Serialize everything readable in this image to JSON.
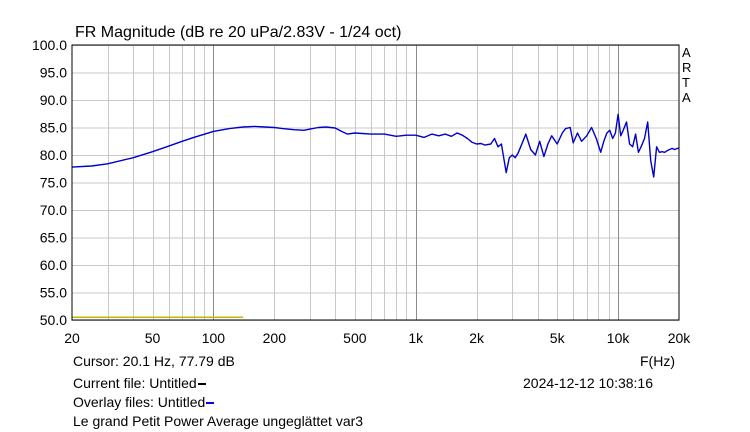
{
  "chart_data": {
    "type": "line",
    "title": "FR Magnitude (dB re 20 uPa/2.83V - 1/24 oct)",
    "xlabel": "F(Hz)",
    "ylabel": "",
    "xscale": "log",
    "xlim": [
      20,
      20000
    ],
    "ylim": [
      50,
      100
    ],
    "yticks": [
      100,
      95,
      90,
      85,
      80,
      75,
      70,
      65,
      60,
      55,
      50
    ],
    "ytick_labels": [
      "100.0",
      "95.0",
      "90.0",
      "85.0",
      "80.0",
      "75.0",
      "70.0",
      "65.0",
      "60.0",
      "55.0",
      "50.0"
    ],
    "xticks": [
      20,
      50,
      100,
      200,
      500,
      1000,
      2000,
      5000,
      10000,
      20000
    ],
    "xtick_labels": [
      "20",
      "50",
      "100",
      "200",
      "500",
      "1k",
      "2k",
      "5k",
      "10k",
      "20k"
    ],
    "grid": true,
    "series": [
      {
        "name": "Untitled",
        "color": "#0000cc",
        "x": [
          20,
          25,
          30,
          40,
          50,
          60,
          70,
          80,
          100,
          120,
          140,
          160,
          180,
          200,
          220,
          250,
          280,
          300,
          330,
          360,
          400,
          430,
          460,
          500,
          600,
          700,
          800,
          900,
          1000,
          1100,
          1200,
          1300,
          1400,
          1500,
          1600,
          1700,
          1800,
          1900,
          2000,
          2100,
          2200,
          2350,
          2450,
          2550,
          2650,
          2800,
          2900,
          3000,
          3100,
          3200,
          3300,
          3500,
          3700,
          3900,
          4100,
          4300,
          4500,
          4700,
          5000,
          5300,
          5500,
          5800,
          6000,
          6300,
          6600,
          7000,
          7400,
          7800,
          8200,
          8500,
          8800,
          9100,
          9400,
          9700,
          10000,
          10300,
          10600,
          11000,
          11400,
          11800,
          12200,
          12600,
          13000,
          13500,
          14000,
          14500,
          15000,
          15500,
          16000,
          16500,
          17000,
          17500,
          18000,
          18500,
          19000,
          20000
        ],
        "y": [
          77.8,
          78.0,
          78.4,
          79.5,
          80.6,
          81.6,
          82.5,
          83.2,
          84.3,
          84.8,
          85.1,
          85.2,
          85.1,
          85.0,
          84.8,
          84.6,
          84.5,
          84.7,
          85.0,
          85.1,
          84.9,
          84.3,
          83.8,
          84.0,
          83.8,
          83.8,
          83.4,
          83.6,
          83.6,
          83.2,
          83.8,
          83.5,
          83.8,
          83.4,
          84.0,
          83.6,
          83.0,
          82.3,
          82.0,
          82.1,
          81.8,
          82.0,
          83.0,
          81.5,
          82.0,
          76.8,
          79.5,
          80.0,
          79.5,
          80.3,
          81.5,
          83.8,
          81.0,
          80.0,
          82.5,
          79.7,
          82.0,
          83.5,
          82.0,
          84.0,
          84.8,
          85.0,
          82.2,
          84.0,
          82.5,
          83.5,
          85.0,
          83.0,
          80.5,
          82.5,
          84.0,
          84.5,
          83.0,
          84.0,
          87.4,
          83.5,
          84.5,
          86.0,
          82.0,
          81.5,
          83.8,
          80.5,
          81.5,
          83.0,
          86.0,
          79.0,
          76.0,
          81.5,
          80.5,
          80.6,
          80.5,
          80.8,
          81.0,
          81.2,
          81.0,
          81.3
        ],
        "cursor": {
          "x": 20.1,
          "y": 77.79
        }
      },
      {
        "name": "Overlay",
        "color": "#c8b400",
        "x": [
          20,
          140
        ],
        "y": [
          50.5,
          50.5
        ]
      }
    ]
  },
  "side_label": [
    "A",
    "R",
    "T",
    "A"
  ],
  "cursor_text": "Cursor: 20.1 Hz, 77.79 dB",
  "xunit": "F(Hz)",
  "current_file": "Current file: Untitled",
  "current_file_color": "#000000",
  "timestamp": "2024-12-12  10:38:16",
  "overlay_files": "Overlay files: Untitled",
  "overlay_files_color": "#0000ff",
  "caption": "Le grand Petit Power Average ungeglättet var3"
}
